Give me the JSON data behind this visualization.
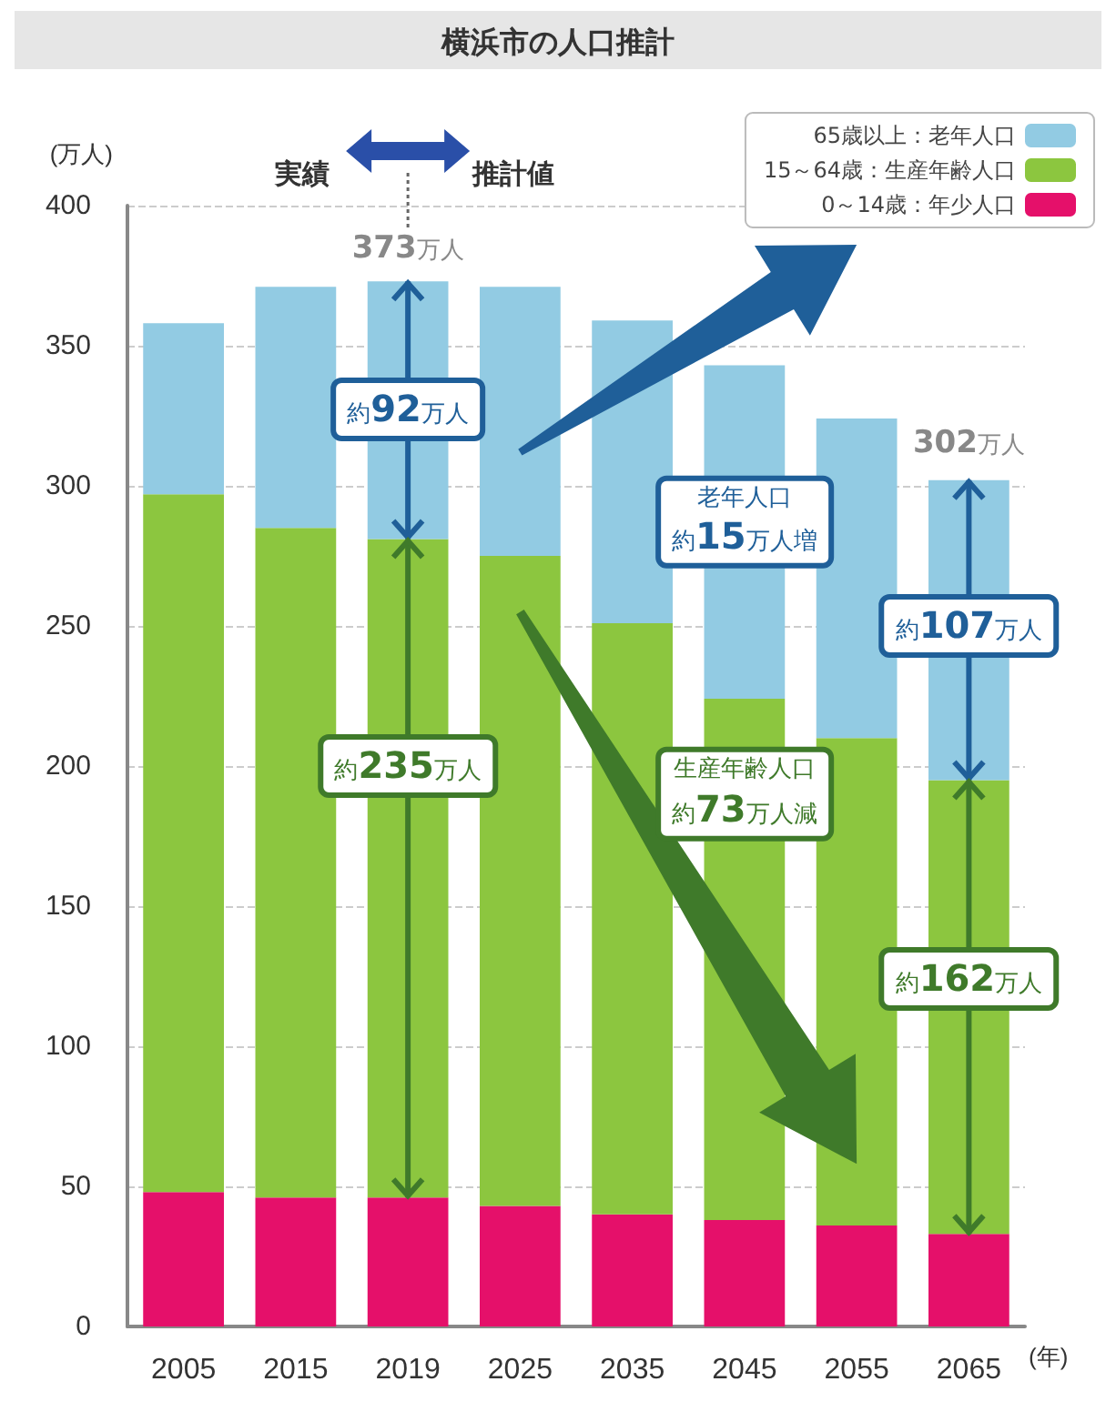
{
  "chart_data": {
    "type": "bar",
    "title": "横浜市の人口推計",
    "xlabel": "(年)",
    "ylabel": "(万人)",
    "categories": [
      "2005",
      "2015",
      "2019",
      "2025",
      "2035",
      "2045",
      "2055",
      "2065"
    ],
    "stacked": true,
    "series": [
      {
        "name": "0～14歳：年少人口",
        "color": "#e5106a",
        "values": [
          48,
          46,
          46,
          43,
          40,
          38,
          36,
          33
        ]
      },
      {
        "name": "15～64歳：生産年齢人口",
        "color": "#8cc63f",
        "values": [
          249,
          239,
          235,
          232,
          211,
          186,
          174,
          162
        ]
      },
      {
        "name": "65歳以上：老年人口",
        "color": "#92cbe3",
        "values": [
          61,
          86,
          92,
          96,
          108,
          119,
          114,
          107
        ]
      }
    ],
    "ylim": [
      0,
      400
    ],
    "yticks": [
      0,
      50,
      100,
      150,
      200,
      250,
      300,
      350,
      400
    ],
    "grid": "y",
    "legend": "top right",
    "annotations": [
      "実績",
      "推計値",
      {
        "text": "373万人",
        "x": "2019",
        "y": 373
      },
      {
        "text": "302万人",
        "x": "2065",
        "y": 302
      },
      "約92万人",
      "約235万人",
      "老年人口",
      "約15万人増",
      "生産年齢人口",
      "約73万人減",
      "約107万人",
      "約162万人"
    ]
  }
}
